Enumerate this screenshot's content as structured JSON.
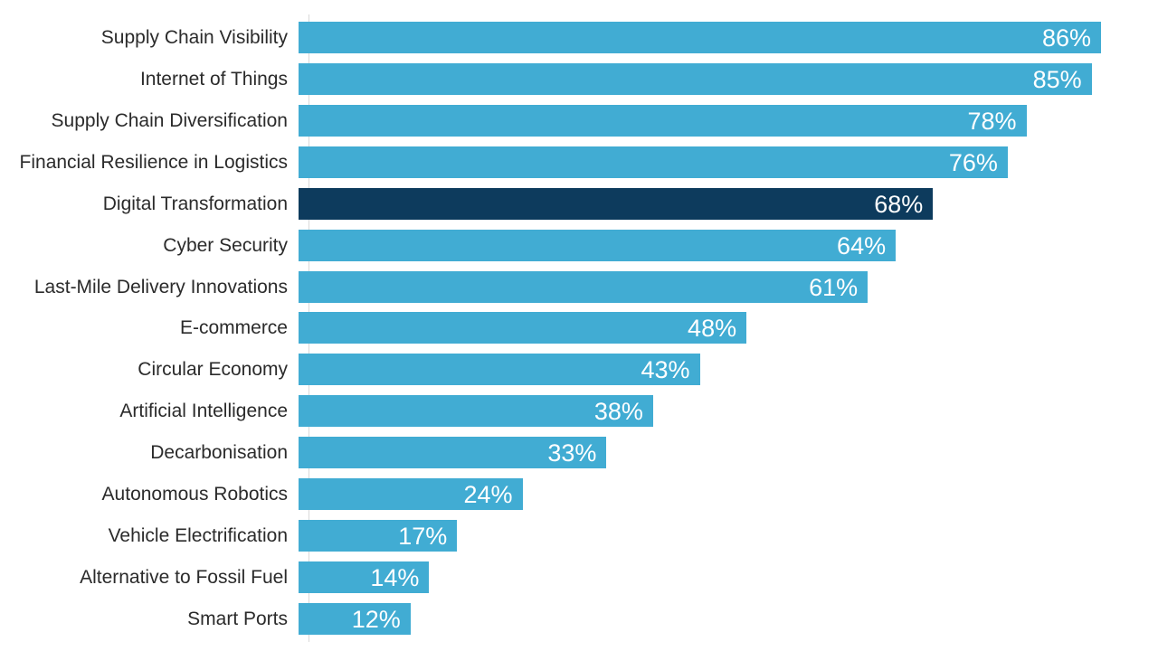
{
  "chart_data": {
    "type": "bar",
    "orientation": "horizontal",
    "title": "",
    "xlabel": "",
    "ylabel": "",
    "grid": false,
    "legend": false,
    "xlim": [
      0,
      86
    ],
    "categories": [
      "Supply Chain Visibility",
      "Internet of Things",
      "Supply Chain Diversification",
      "Financial Resilience in Logistics",
      "Digital Transformation",
      "Cyber Security",
      "Last-Mile Delivery Innovations",
      "E-commerce",
      "Circular Economy",
      "Artificial Intelligence",
      "Decarbonisation",
      "Autonomous Robotics",
      "Vehicle Electrification",
      "Alternative to Fossil Fuel",
      "Smart Ports"
    ],
    "values": [
      86,
      85,
      78,
      76,
      68,
      64,
      61,
      48,
      43,
      38,
      33,
      24,
      17,
      14,
      12
    ],
    "value_labels": [
      "86%",
      "85%",
      "78%",
      "76%",
      "68%",
      "64%",
      "61%",
      "48%",
      "43%",
      "38%",
      "33%",
      "24%",
      "17%",
      "14%",
      "12%"
    ],
    "data_label_position": "inside-end",
    "highlight_index": 4,
    "highlighted_category": "Digital Transformation",
    "colors": {
      "bar": "#41ACD3",
      "bar_highlight": "#0D3B5D",
      "data_label_text": "#FFFFFF",
      "category_text": "#2B2B2B",
      "axis_line": "#D9D9D9",
      "background": "#FFFFFF"
    }
  }
}
